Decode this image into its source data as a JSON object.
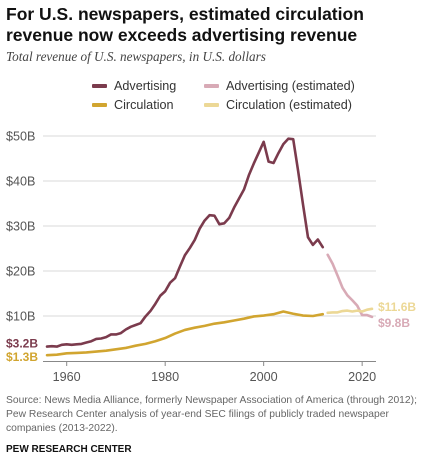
{
  "header": {
    "title": "For U.S. newspapers, estimated circulation revenue now exceeds advertising revenue",
    "subtitle": "Total revenue of U.S. newspapers, in U.S. dollars"
  },
  "colors": {
    "advertising": "#7b3b4d",
    "advertising_estimated": "#d8aab6",
    "circulation": "#d1a530",
    "circulation_estimated": "#ecd896",
    "grid": "#d9d9d9",
    "axis": "#888888",
    "tick_text": "#555555"
  },
  "legend": {
    "advertising": "Advertising",
    "advertising_estimated": "Advertising (estimated)",
    "circulation": "Circulation",
    "circulation_estimated": "Circulation (estimated)"
  },
  "chart_data": {
    "type": "line",
    "title": "For U.S. newspapers, estimated circulation revenue now exceeds advertising revenue",
    "subtitle": "Total revenue of U.S. newspapers, in U.S. dollars",
    "xlim": [
      1956,
      2022
    ],
    "ylim": [
      0,
      50
    ],
    "x_ticks": [
      1960,
      1980,
      2000,
      2020
    ],
    "x_tick_labels": [
      "1960",
      "1980",
      "2000",
      "2020"
    ],
    "y_ticks": [
      10,
      20,
      30,
      40,
      50
    ],
    "y_tick_labels": [
      "$10B",
      "$20B",
      "$30B",
      "$40B",
      "$50B"
    ],
    "grid": true,
    "series": [
      {
        "name": "Advertising",
        "style": "solid",
        "x": [
          1956,
          1957,
          1958,
          1959,
          1960,
          1961,
          1962,
          1963,
          1964,
          1965,
          1966,
          1967,
          1968,
          1969,
          1970,
          1971,
          1972,
          1973,
          1974,
          1975,
          1976,
          1977,
          1978,
          1979,
          1980,
          1981,
          1982,
          1983,
          1984,
          1985,
          1986,
          1987,
          1988,
          1989,
          1990,
          1991,
          1992,
          1993,
          1994,
          1995,
          1996,
          1997,
          1998,
          1999,
          2000,
          2001,
          2002,
          2003,
          2004,
          2005,
          2006,
          2007,
          2008,
          2009,
          2010,
          2011,
          2012
        ],
        "values": [
          3.2,
          3.3,
          3.2,
          3.6,
          3.7,
          3.6,
          3.7,
          3.8,
          4.1,
          4.4,
          4.9,
          5.0,
          5.3,
          5.9,
          5.9,
          6.2,
          7.0,
          7.6,
          8.0,
          8.4,
          9.9,
          11.1,
          12.7,
          14.5,
          15.5,
          17.4,
          18.4,
          21.0,
          23.5,
          25.1,
          26.9,
          29.4,
          31.2,
          32.4,
          32.3,
          30.4,
          30.6,
          31.8,
          34.1,
          36.1,
          38.1,
          41.3,
          43.9,
          46.3,
          48.7,
          44.3,
          44.0,
          46.2,
          48.2,
          49.4,
          49.3,
          42.2,
          34.7,
          27.5,
          25.8,
          27.0,
          25.3
        ]
      },
      {
        "name": "Advertising (estimated)",
        "style": "solid",
        "x": [
          2013,
          2014,
          2015,
          2016,
          2017,
          2018,
          2019,
          2020,
          2021,
          2022
        ],
        "values": [
          23.6,
          21.6,
          19.0,
          16.3,
          14.6,
          13.5,
          12.3,
          10.2,
          10.2,
          9.8
        ]
      },
      {
        "name": "Circulation",
        "style": "solid",
        "x": [
          1956,
          1958,
          1960,
          1962,
          1964,
          1966,
          1968,
          1970,
          1972,
          1974,
          1976,
          1978,
          1980,
          1982,
          1984,
          1986,
          1988,
          1990,
          1992,
          1994,
          1996,
          1998,
          2000,
          2002,
          2004,
          2006,
          2008,
          2010,
          2012
        ],
        "values": [
          1.3,
          1.4,
          1.7,
          1.8,
          1.9,
          2.1,
          2.3,
          2.6,
          2.9,
          3.4,
          3.8,
          4.4,
          5.1,
          6.1,
          6.9,
          7.4,
          7.8,
          8.3,
          8.6,
          9.0,
          9.4,
          9.9,
          10.1,
          10.4,
          11.0,
          10.5,
          10.1,
          10.0,
          10.4
        ]
      },
      {
        "name": "Circulation (estimated)",
        "style": "solid",
        "x": [
          2013,
          2014,
          2015,
          2016,
          2017,
          2018,
          2019,
          2020,
          2021,
          2022
        ],
        "values": [
          10.7,
          10.8,
          10.8,
          11.1,
          11.2,
          11.0,
          11.2,
          11.0,
          11.4,
          11.6
        ]
      }
    ],
    "annotations": [
      {
        "label": "$3.2B",
        "series": "Advertising",
        "x": 1956,
        "value": 3.2
      },
      {
        "label": "$1.3B",
        "series": "Circulation",
        "x": 1956,
        "value": 1.3
      },
      {
        "label": "$11.6B",
        "series": "Circulation (estimated)",
        "x": 2022,
        "value": 11.6
      },
      {
        "label": "$9.8B",
        "series": "Advertising (estimated)",
        "x": 2022,
        "value": 9.8
      }
    ]
  },
  "footer": {
    "source": "Source: News Media Alliance, formerly Newspaper Association of America (through 2012); Pew Research Center analysis of year-end SEC filings of publicly traded newspaper companies (2013-2022).",
    "credit": "PEW RESEARCH CENTER"
  }
}
